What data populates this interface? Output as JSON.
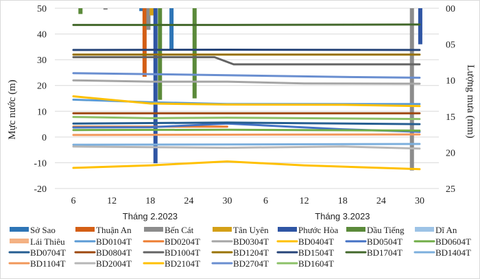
{
  "chart_data": {
    "type": "line",
    "title": "",
    "ylabel": "Mực nước (m)",
    "y2label": "Lượng mưa (mm)",
    "ylim": [
      -20,
      50
    ],
    "y2lim": [
      0,
      25
    ],
    "y2_inverted": true,
    "yticks": [
      "50",
      "40",
      "30",
      "20",
      "10",
      "0",
      "-10",
      "-20"
    ],
    "y2ticks": [
      "00",
      "05",
      "10",
      "15",
      "20",
      "25"
    ],
    "x_tick_labels": [
      {
        "label": "6",
        "idx": 5
      },
      {
        "label": "12",
        "idx": 11
      },
      {
        "label": "18",
        "idx": 17
      },
      {
        "label": "24",
        "idx": 23
      },
      {
        "label": "30",
        "idx": 29
      },
      {
        "label": "6",
        "idx": 35
      },
      {
        "label": "12",
        "idx": 41
      },
      {
        "label": "18",
        "idx": 47
      },
      {
        "label": "24",
        "idx": 53
      },
      {
        "label": "30",
        "idx": 59
      }
    ],
    "x_groups": [
      {
        "label": "Tháng 2.2023",
        "center_idx": 17.5
      },
      {
        "label": "Tháng 3.2023",
        "center_idx": 47.5
      }
    ],
    "grid": true,
    "legend_position": "bottom",
    "rain_series": [
      {
        "name": "Sở Sao",
        "color": "#2e75b6",
        "bars": [
          {
            "idx": 15.6,
            "value": 0.4
          },
          {
            "idx": 20.3,
            "value": 5.7
          }
        ]
      },
      {
        "name": "Thuận An",
        "color": "#d45f15",
        "bars": [
          {
            "idx": 16.1,
            "value": 9.5
          }
        ]
      },
      {
        "name": "Bến Cát",
        "color": "#8c8c8c",
        "bars": [
          {
            "idx": 10.0,
            "value": 0.2
          },
          {
            "idx": 16.7,
            "value": 3.0
          },
          {
            "idx": 57.8,
            "value": 22.5
          }
        ]
      },
      {
        "name": "Tân Uyên",
        "color": "#d4a017",
        "bars": [
          {
            "idx": 17.2,
            "value": 1.0
          }
        ]
      },
      {
        "name": "Phước Hòa",
        "color": "#2f55a4",
        "bars": [
          {
            "idx": 17.8,
            "value": 21.5
          },
          {
            "idx": 59.1,
            "value": 5.0
          }
        ]
      },
      {
        "name": "Dầu Tiếng",
        "color": "#5b8a3a",
        "bars": [
          {
            "idx": 6.1,
            "value": 0.8
          },
          {
            "idx": 18.5,
            "value": 12.7
          },
          {
            "idx": 23.9,
            "value": 12.5
          }
        ]
      },
      {
        "name": "Dĩ An",
        "color": "#9dc3e6",
        "bars": []
      }
    ],
    "series": [
      {
        "name": "Lái Thiêu",
        "color": "#f4b183",
        "kind": "bar",
        "points": []
      },
      {
        "name": "BD0104T",
        "color": "#5b9bd5",
        "points": [
          [
            5,
            14.5
          ],
          [
            17,
            13.5
          ],
          [
            29,
            12.8
          ],
          [
            47,
            12.8
          ],
          [
            59,
            12.8
          ]
        ]
      },
      {
        "name": "BD0204T",
        "color": "#ed7d31",
        "points": [
          [
            5,
            4.0
          ],
          [
            17,
            4.0
          ],
          [
            29,
            4.0
          ]
        ]
      },
      {
        "name": "BD0304T",
        "color": "#a5a5a5",
        "points": [
          [
            5,
            22.0
          ],
          [
            17,
            21.5
          ],
          [
            29,
            21.5
          ],
          [
            41,
            20.8
          ],
          [
            59,
            20.7
          ]
        ]
      },
      {
        "name": "BD0404T",
        "color": "#ffc000",
        "points": [
          [
            5,
            15.8
          ],
          [
            17,
            13.0
          ],
          [
            29,
            12.6
          ],
          [
            47,
            12.5
          ],
          [
            59,
            12.0
          ]
        ]
      },
      {
        "name": "BD0504T",
        "color": "#4472c4",
        "points": [
          [
            5,
            3.7
          ],
          [
            17,
            3.8
          ],
          [
            29,
            5.2
          ],
          [
            47,
            3.0
          ],
          [
            59,
            2.0
          ]
        ]
      },
      {
        "name": "BD0604T",
        "color": "#70ad47",
        "points": [
          [
            5,
            2.7
          ],
          [
            29,
            2.8
          ],
          [
            59,
            2.5
          ]
        ]
      },
      {
        "name": "BD0704T",
        "color": "#255e91",
        "points": [
          [
            5,
            5.2
          ],
          [
            29,
            5.6
          ],
          [
            59,
            5.0
          ]
        ]
      },
      {
        "name": "BD0804T",
        "color": "#9e480e",
        "points": [
          [
            5,
            9.2
          ],
          [
            29,
            9.2
          ],
          [
            59,
            9.2
          ]
        ]
      },
      {
        "name": "BD1004T",
        "color": "#636363",
        "points": [
          [
            5,
            31.0
          ],
          [
            27,
            31.0
          ],
          [
            30,
            28.2
          ],
          [
            59,
            28.2
          ]
        ]
      },
      {
        "name": "BD1204T",
        "color": "#997300",
        "points": [
          [
            5,
            32.0
          ],
          [
            29,
            32.0
          ],
          [
            59,
            32.0
          ]
        ]
      },
      {
        "name": "BD1504T",
        "color": "#264478",
        "points": [
          [
            5,
            33.8
          ],
          [
            29,
            33.9
          ],
          [
            59,
            33.8
          ]
        ]
      },
      {
        "name": "BD1704T",
        "color": "#43682b",
        "points": [
          [
            5,
            43.5
          ],
          [
            29,
            43.5
          ],
          [
            59,
            43.7
          ]
        ]
      },
      {
        "name": "BD1404T",
        "color": "#7cafdd",
        "points": [
          [
            5,
            -3.0
          ],
          [
            29,
            -2.9
          ],
          [
            59,
            -2.7
          ]
        ]
      },
      {
        "name": "BD1104T",
        "color": "#f1975a",
        "points": [
          [
            5,
            0.8
          ],
          [
            29,
            0.9
          ],
          [
            59,
            1.0
          ]
        ]
      },
      {
        "name": "BD2004T",
        "color": "#b7b7b7",
        "points": [
          [
            5,
            -3.7
          ],
          [
            29,
            -4.2
          ],
          [
            47,
            -3.7
          ],
          [
            59,
            -4.5
          ]
        ]
      },
      {
        "name": "BD2104T",
        "color": "#ffc000",
        "points": [
          [
            5,
            -12.0
          ],
          [
            17,
            -11.0
          ],
          [
            29,
            -9.5
          ],
          [
            41,
            -11.0
          ],
          [
            59,
            -12.5
          ]
        ]
      },
      {
        "name": "BD2704T",
        "color": "#698ed0",
        "points": [
          [
            5,
            24.8
          ],
          [
            29,
            24.0
          ],
          [
            47,
            23.3
          ],
          [
            59,
            23.0
          ]
        ]
      },
      {
        "name": "BD1604T",
        "color": "#8cc168",
        "points": [
          [
            5,
            7.8
          ],
          [
            17,
            7.3
          ],
          [
            29,
            7.5
          ],
          [
            59,
            7.0
          ]
        ]
      }
    ],
    "legend": [
      {
        "name": "Sở Sao",
        "color": "#2e75b6",
        "style": "bar"
      },
      {
        "name": "Thuận An",
        "color": "#d45f15",
        "style": "bar"
      },
      {
        "name": "Bến Cát",
        "color": "#8c8c8c",
        "style": "bar"
      },
      {
        "name": "Tân Uyên",
        "color": "#d4a017",
        "style": "bar"
      },
      {
        "name": "Phước Hòa",
        "color": "#2f55a4",
        "style": "bar"
      },
      {
        "name": "Dầu Tiếng",
        "color": "#5b8a3a",
        "style": "bar"
      },
      {
        "name": "Dĩ An",
        "color": "#9dc3e6",
        "style": "bar"
      },
      {
        "name": "Lái Thiêu",
        "color": "#f4b183",
        "style": "bar"
      },
      {
        "name": "BD0104T",
        "color": "#5b9bd5",
        "style": "line"
      },
      {
        "name": "BD0204T",
        "color": "#ed7d31",
        "style": "line"
      },
      {
        "name": "BD0304T",
        "color": "#a5a5a5",
        "style": "line"
      },
      {
        "name": "BD0404T",
        "color": "#ffc000",
        "style": "line"
      },
      {
        "name": "BD0504T",
        "color": "#4472c4",
        "style": "line"
      },
      {
        "name": "BD0604T",
        "color": "#70ad47",
        "style": "line"
      },
      {
        "name": "BD0704T",
        "color": "#255e91",
        "style": "line"
      },
      {
        "name": "BD0804T",
        "color": "#9e480e",
        "style": "line"
      },
      {
        "name": "BD1004T",
        "color": "#636363",
        "style": "line"
      },
      {
        "name": "BD1204T",
        "color": "#997300",
        "style": "line"
      },
      {
        "name": "BD1504T",
        "color": "#264478",
        "style": "line"
      },
      {
        "name": "BD1704T",
        "color": "#43682b",
        "style": "line"
      },
      {
        "name": "BD1404T",
        "color": "#7cafdd",
        "style": "line"
      },
      {
        "name": "BD1104T",
        "color": "#f1975a",
        "style": "line"
      },
      {
        "name": "BD2004T",
        "color": "#b7b7b7",
        "style": "line"
      },
      {
        "name": "BD2104T",
        "color": "#ffc000",
        "style": "line"
      },
      {
        "name": "BD2704T",
        "color": "#698ed0",
        "style": "line"
      },
      {
        "name": "BD1604T",
        "color": "#8cc168",
        "style": "line"
      }
    ]
  }
}
